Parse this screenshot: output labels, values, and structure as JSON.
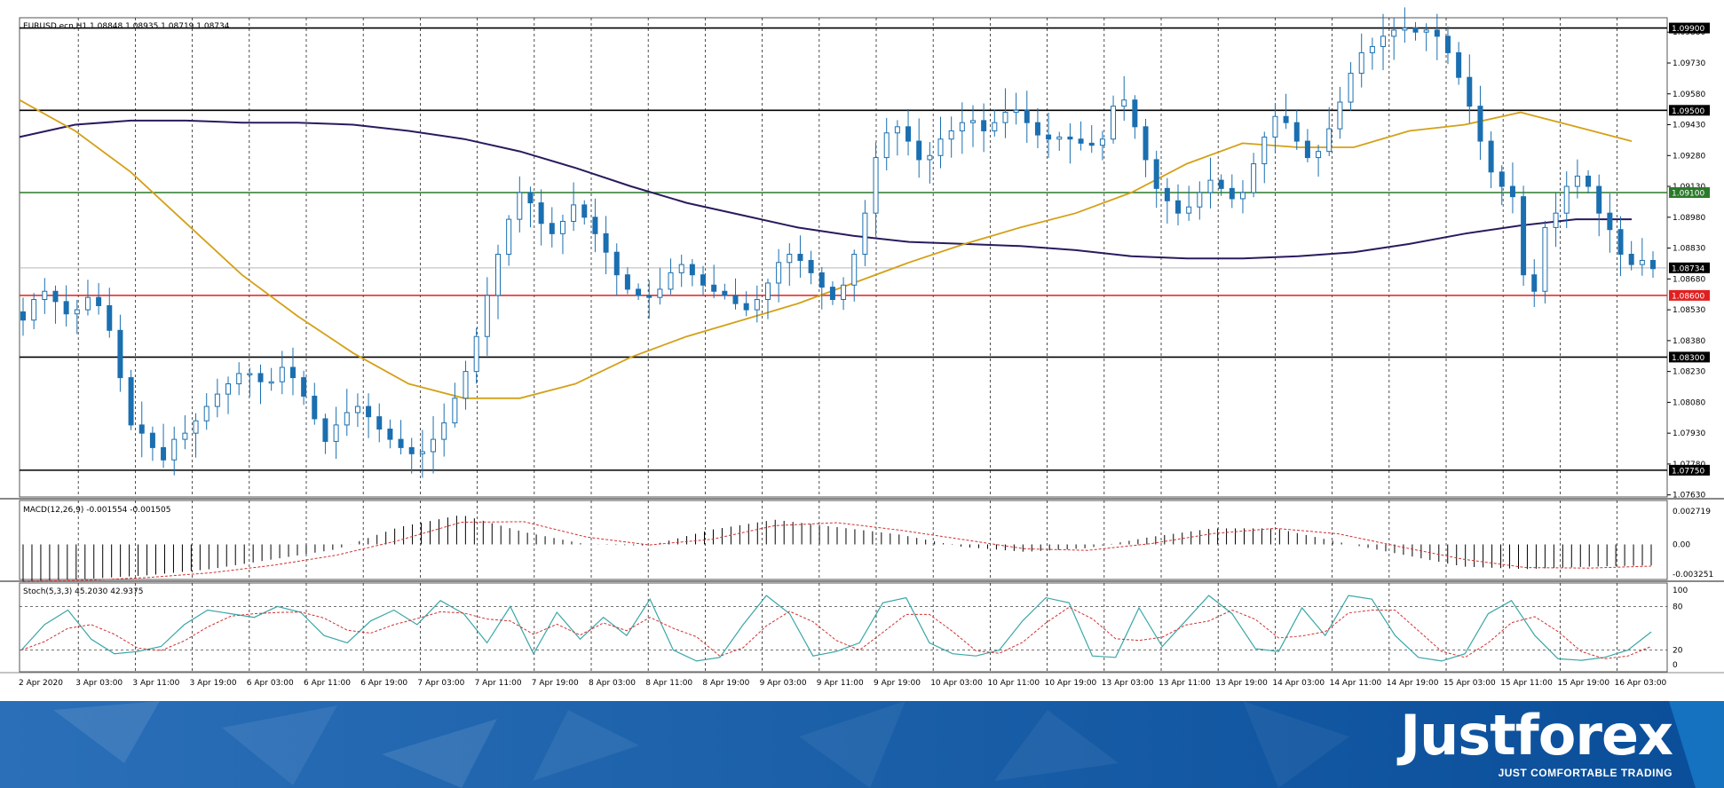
{
  "header": {
    "symbol_info": "EURUSD.ecn,H1  1.08848 1.08935 1.08719 1.08734"
  },
  "colors": {
    "candle": "#1a6fb0",
    "ma_fast": "#d4a017",
    "ma_slow": "#2a1a5e",
    "level_black": "#000000",
    "level_green": "#2a7a2a",
    "level_red": "#e02020",
    "stoch_main": "#3aa6a6",
    "stoch_signal": "#d03030",
    "footer_blue": "#0b5aa8"
  },
  "price_axis": {
    "ticks": [
      "1.09880",
      "1.09730",
      "1.09580",
      "1.09430",
      "1.09280",
      "1.09130",
      "1.08980",
      "1.08830",
      "1.08680",
      "1.08530",
      "1.08380",
      "1.08230",
      "1.08080",
      "1.07930",
      "1.07780",
      "1.07630"
    ],
    "labels": [
      {
        "text": "1.09900",
        "bg": "#000000"
      },
      {
        "text": "1.09500",
        "bg": "#000000"
      },
      {
        "text": "1.09100",
        "bg": "#2a7a2a"
      },
      {
        "text": "1.08734",
        "bg": "#000000"
      },
      {
        "text": "1.08600",
        "bg": "#e02020"
      },
      {
        "text": "1.08300",
        "bg": "#000000"
      },
      {
        "text": "1.07750",
        "bg": "#000000"
      }
    ]
  },
  "macd": {
    "label": "MACD(12,26,9) -0.001554 -0.001505",
    "ticks": [
      "0.002719",
      "0.00",
      "-0.003251"
    ]
  },
  "stoch": {
    "label": "Stoch(5,3,3) 45.2030 42.9375",
    "ticks": [
      "100",
      "80",
      "20",
      "0"
    ]
  },
  "time_axis": [
    "2 Apr 2020",
    "3 Apr 03:00",
    "3 Apr 11:00",
    "3 Apr 19:00",
    "6 Apr 03:00",
    "6 Apr 11:00",
    "6 Apr 19:00",
    "7 Apr 03:00",
    "7 Apr 11:00",
    "7 Apr 19:00",
    "8 Apr 03:00",
    "8 Apr 11:00",
    "8 Apr 19:00",
    "9 Apr 03:00",
    "9 Apr 11:00",
    "9 Apr 19:00",
    "10 Apr 03:00",
    "10 Apr 11:00",
    "10 Apr 19:00",
    "13 Apr 03:00",
    "13 Apr 11:00",
    "13 Apr 19:00",
    "14 Apr 03:00",
    "14 Apr 11:00",
    "14 Apr 19:00",
    "15 Apr 03:00",
    "15 Apr 11:00",
    "15 Apr 19:00",
    "16 Apr 03:00"
  ],
  "brand": {
    "name": "Justforex",
    "tagline": "JUST COMFORTABLE TRADING"
  },
  "chart_data": {
    "type": "candlestick",
    "title": "EURUSD.ecn,H1",
    "timeframe": "H1",
    "last_bar": {
      "open": 1.08848,
      "high": 1.08935,
      "low": 1.08719,
      "close": 1.08734
    },
    "ylim": [
      1.0762,
      1.0995
    ],
    "horizontal_levels": [
      {
        "price": 1.099,
        "color": "black"
      },
      {
        "price": 1.095,
        "color": "black"
      },
      {
        "price": 1.091,
        "color": "green"
      },
      {
        "price": 1.086,
        "color": "red"
      },
      {
        "price": 1.083,
        "color": "black"
      },
      {
        "price": 1.0775,
        "color": "black"
      }
    ],
    "current_price": 1.08734,
    "close_path": [
      1.0848,
      1.0858,
      1.0862,
      1.0857,
      1.0851,
      1.0853,
      1.0859,
      1.0855,
      1.0843,
      1.082,
      1.0797,
      1.0793,
      1.0786,
      1.078,
      1.079,
      1.0793,
      1.0799,
      1.0806,
      1.0812,
      1.0817,
      1.0822,
      1.0822,
      1.0818,
      1.0818,
      1.0825,
      1.082,
      1.0811,
      1.08,
      1.0789,
      1.0797,
      1.0803,
      1.0806,
      1.0801,
      1.0795,
      1.079,
      1.0786,
      1.0783,
      1.0784,
      1.079,
      1.0798,
      1.081,
      1.0823,
      1.084,
      1.086,
      1.088,
      1.0897,
      1.091,
      1.0905,
      1.0895,
      1.089,
      1.0896,
      1.0904,
      1.0898,
      1.089,
      1.0881,
      1.087,
      1.0863,
      1.086,
      1.0859,
      1.0863,
      1.0871,
      1.0875,
      1.087,
      1.0865,
      1.0862,
      1.086,
      1.0856,
      1.0853,
      1.0858,
      1.0866,
      1.0876,
      1.088,
      1.0877,
      1.0871,
      1.0864,
      1.0858,
      1.0865,
      1.088,
      1.09,
      1.0927,
      1.0939,
      1.0942,
      1.0935,
      1.0926,
      1.0928,
      1.0936,
      1.094,
      1.0944,
      1.0945,
      1.094,
      1.0944,
      1.0949,
      1.095,
      1.0944,
      1.0938,
      1.0936,
      1.0937,
      1.0936,
      1.0934,
      1.0933,
      1.0936,
      1.0952,
      1.0955,
      1.0942,
      1.0926,
      1.0912,
      1.0906,
      1.09,
      1.0903,
      1.091,
      1.0916,
      1.0912,
      1.0907,
      1.091,
      1.0924,
      1.0937,
      1.0947,
      1.0944,
      1.0935,
      1.0927,
      1.093,
      1.0941,
      1.0954,
      1.0968,
      1.0978,
      1.0981,
      1.0986,
      1.0989,
      1.099,
      1.0988,
      1.0989,
      1.0986,
      1.0978,
      1.0966,
      1.0952,
      1.0935,
      1.092,
      1.0913,
      1.0908,
      1.087,
      1.0862,
      1.0893,
      1.09,
      1.0913,
      1.0918,
      1.0913,
      1.09,
      1.0892,
      1.088,
      1.0875,
      1.0877,
      1.0873
    ],
    "ma_fast_path": [
      1.0955,
      1.094,
      1.092,
      1.0895,
      1.087,
      1.085,
      1.0832,
      1.0817,
      1.081,
      1.081,
      1.0817,
      1.083,
      1.084,
      1.0848,
      1.0856,
      1.0866,
      1.0876,
      1.0885,
      1.0893,
      1.09,
      1.091,
      1.0924,
      1.0934,
      1.0932,
      1.0932,
      1.094,
      1.0943,
      1.0949,
      1.0942,
      1.0935
    ],
    "ma_slow_path": [
      1.0937,
      1.0943,
      1.0945,
      1.0945,
      1.0944,
      1.0944,
      1.0943,
      1.094,
      1.0936,
      1.093,
      1.0922,
      1.0913,
      1.0905,
      1.0899,
      1.0893,
      1.0889,
      1.0886,
      1.0885,
      1.0884,
      1.0882,
      1.0879,
      1.0878,
      1.0878,
      1.0879,
      1.0881,
      1.0885,
      1.089,
      1.0894,
      1.0897,
      1.0897
    ],
    "macd_histogram": [
      -0.003,
      -0.0028,
      -0.0025,
      -0.002,
      -0.0012,
      -0.0004,
      0.0014,
      0.0024,
      0.001,
      0.0,
      -0.0001,
      0.0012,
      0.002,
      0.0014,
      0.0008,
      -0.0002,
      -0.0006,
      -0.0003,
      0.0006,
      0.0013,
      0.0013,
      0.0002,
      -0.0008,
      -0.0018,
      -0.002,
      -0.0018,
      -0.0017
    ],
    "stoch_main": [
      20,
      55,
      75,
      35,
      15,
      18,
      25,
      55,
      75,
      70,
      65,
      80,
      72,
      40,
      30,
      60,
      75,
      55,
      88,
      70,
      30,
      80,
      15,
      72,
      35,
      65,
      40,
      90,
      20,
      5,
      10,
      55,
      95,
      70,
      12,
      18,
      30,
      85,
      92,
      30,
      15,
      12,
      20,
      60,
      92,
      85,
      12,
      10,
      78,
      25,
      60,
      95,
      70,
      22,
      18,
      78,
      40,
      95,
      90,
      40,
      10,
      5,
      15,
      70,
      88,
      40,
      8,
      6,
      10,
      20,
      45
    ]
  }
}
